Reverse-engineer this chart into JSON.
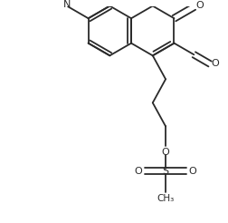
{
  "bg_color": "#ffffff",
  "line_color": "#2a2a2a",
  "line_width": 1.3,
  "figsize": [
    2.52,
    2.46
  ],
  "dpi": 100,
  "xlim": [
    0.0,
    1.0
  ],
  "ylim": [
    0.0,
    1.0
  ]
}
